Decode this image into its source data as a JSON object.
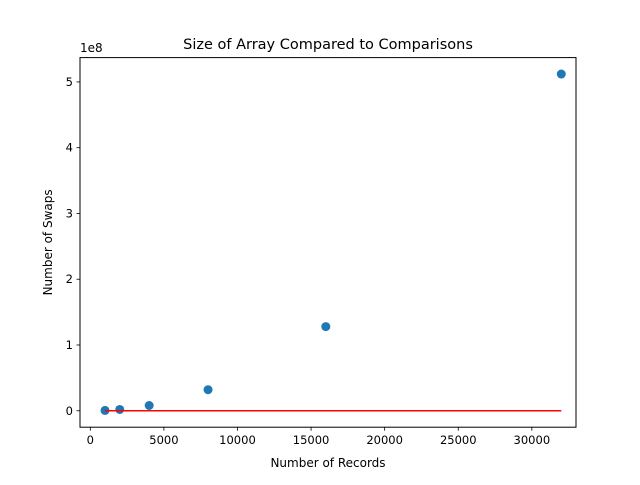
{
  "chart_data": {
    "type": "scatter",
    "title": "Size of Array Compared to Comparisons",
    "xlabel": "Number of Records",
    "ylabel": "Number of Swaps",
    "y_offset_label": "1e8",
    "xlim": [
      -700,
      33000
    ],
    "ylim": [
      -25000000,
      537000000
    ],
    "x_ticks": [
      0,
      5000,
      10000,
      15000,
      20000,
      25000,
      30000
    ],
    "x_tick_labels": [
      "0",
      "5000",
      "10000",
      "15000",
      "20000",
      "25000",
      "30000"
    ],
    "y_ticks": [
      0,
      100000000,
      200000000,
      300000000,
      400000000,
      500000000
    ],
    "y_tick_labels": [
      "0",
      "1",
      "2",
      "3",
      "4",
      "5"
    ],
    "grid": false,
    "series": [
      {
        "kind": "scatter",
        "color": "#1f77b4",
        "x": [
          1000,
          2000,
          4000,
          8000,
          16000,
          32000
        ],
        "y": [
          500000,
          2000000,
          8000000,
          32000000,
          128000000,
          512000000
        ]
      },
      {
        "kind": "line",
        "color": "#ff0000",
        "x": [
          1000,
          32000
        ],
        "y": [
          0,
          0
        ]
      }
    ]
  }
}
